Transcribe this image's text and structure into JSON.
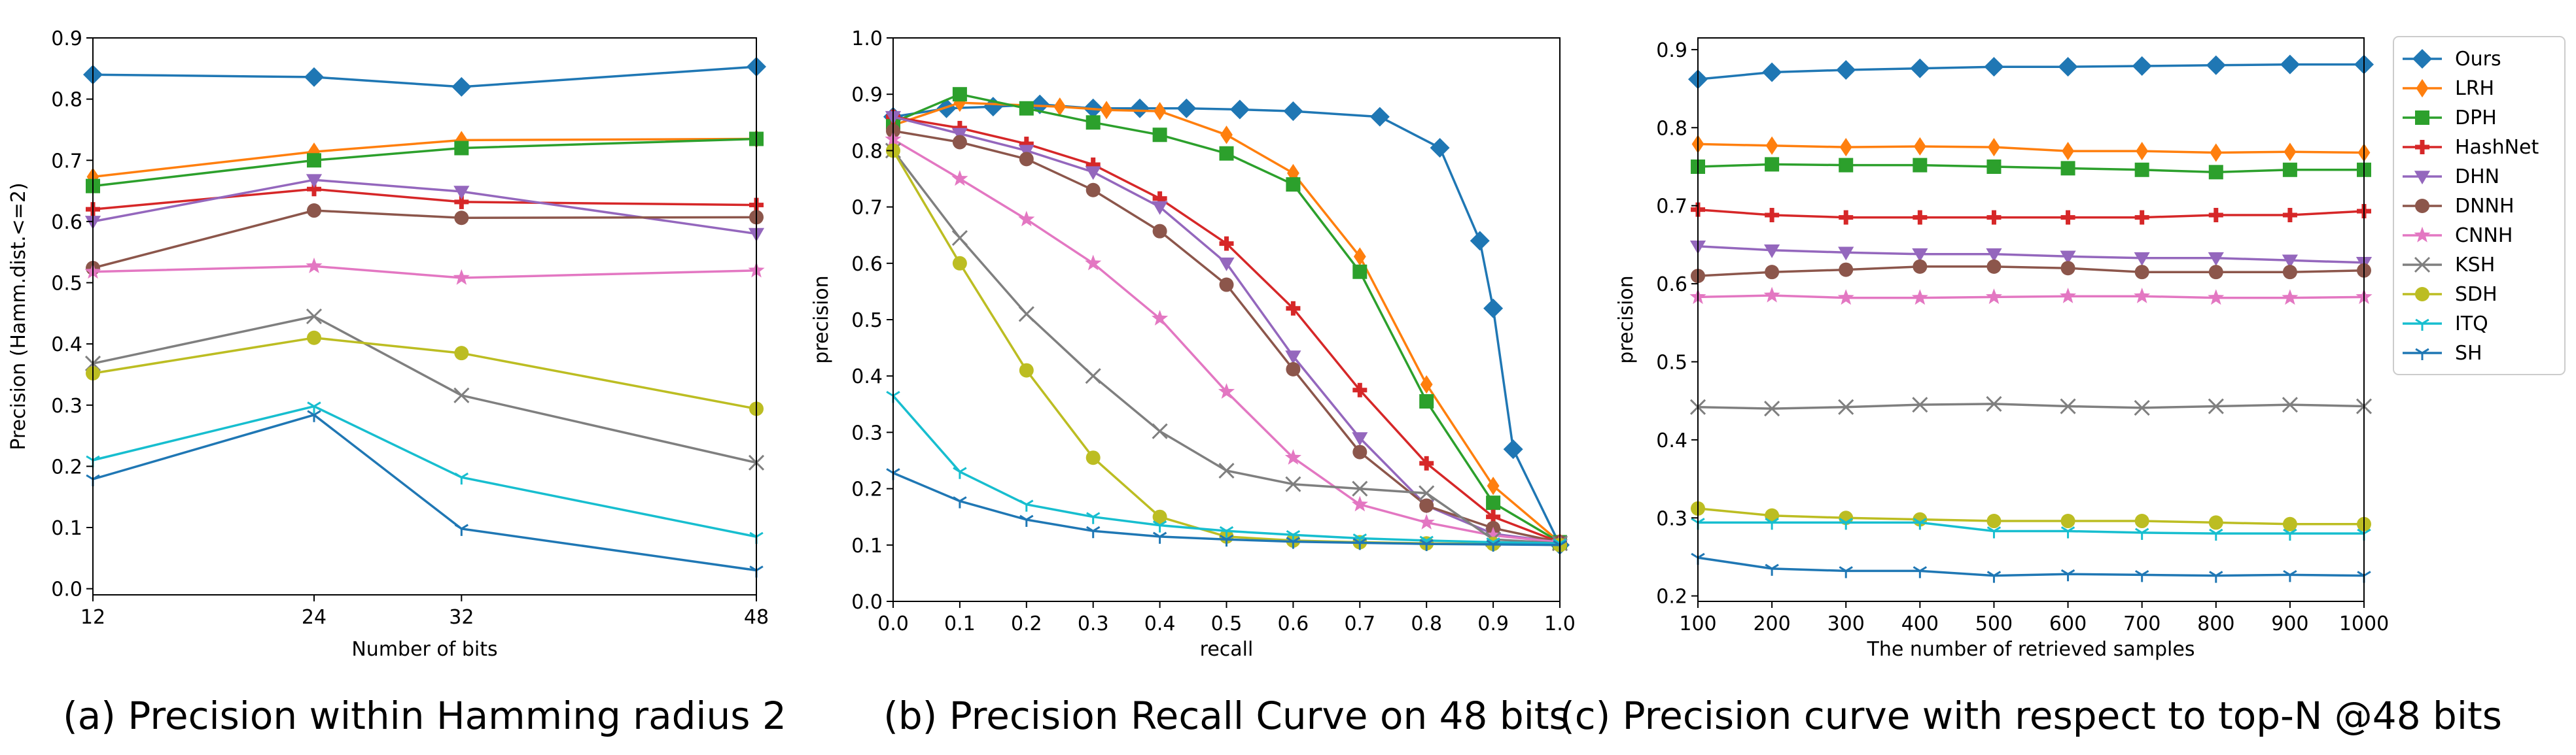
{
  "chart_data": [
    {
      "type": "line",
      "caption": "(a) Precision within Hamming radius 2",
      "xlabel": "Number of bits",
      "ylabel": "Precision (Hamm.dist.<=2)",
      "x": [
        12,
        24,
        32,
        48
      ],
      "xticks": [
        "12",
        "24",
        "32",
        "48"
      ],
      "xlim": [
        12,
        48
      ],
      "ylim": [
        -0.01,
        0.9
      ],
      "yticks": [
        0.0,
        0.1,
        0.2,
        0.3,
        0.4,
        0.5,
        0.6,
        0.7,
        0.8,
        0.9
      ],
      "ytick_labels": [
        "0.0",
        "0.1",
        "0.2",
        "0.3",
        "0.4",
        "0.5",
        "0.6",
        "0.7",
        "0.8",
        "0.9"
      ],
      "series": [
        {
          "name": "Ours",
          "values": [
            0.84,
            0.836,
            0.82,
            0.853
          ]
        },
        {
          "name": "LRH",
          "values": [
            0.673,
            0.714,
            0.733,
            0.735
          ]
        },
        {
          "name": "DPH",
          "values": [
            0.658,
            0.7,
            0.72,
            0.735
          ]
        },
        {
          "name": "HashNet",
          "values": [
            0.62,
            0.653,
            0.632,
            0.627
          ]
        },
        {
          "name": "DHN",
          "values": [
            0.6,
            0.668,
            0.649,
            0.58
          ]
        },
        {
          "name": "DNNH",
          "values": [
            0.524,
            0.618,
            0.606,
            0.607
          ]
        },
        {
          "name": "CNNH",
          "values": [
            0.518,
            0.527,
            0.508,
            0.52
          ]
        },
        {
          "name": "KSH",
          "values": [
            0.368,
            0.445,
            0.316,
            0.206
          ]
        },
        {
          "name": "SDH",
          "values": [
            0.352,
            0.41,
            0.385,
            0.294
          ]
        },
        {
          "name": "ITQ",
          "values": [
            0.21,
            0.298,
            0.182,
            0.085
          ]
        },
        {
          "name": "SH",
          "values": [
            0.179,
            0.284,
            0.098,
            0.03
          ]
        }
      ]
    },
    {
      "type": "line",
      "caption": "(b) Precision Recall Curve on 48 bits",
      "xlabel": "recall",
      "ylabel": "precision",
      "xlim": [
        0.0,
        1.0
      ],
      "ylim": [
        0.0,
        1.0
      ],
      "xticks": [
        0.0,
        0.1,
        0.2,
        0.3,
        0.4,
        0.5,
        0.6,
        0.7,
        0.8,
        0.9,
        1.0
      ],
      "xtick_labels": [
        "0.0",
        "0.1",
        "0.2",
        "0.3",
        "0.4",
        "0.5",
        "0.6",
        "0.7",
        "0.8",
        "0.9",
        "1.0"
      ],
      "yticks": [
        0.0,
        0.1,
        0.2,
        0.3,
        0.4,
        0.5,
        0.6,
        0.7,
        0.8,
        0.9,
        1.0
      ],
      "ytick_labels": [
        "0.0",
        "0.1",
        "0.2",
        "0.3",
        "0.4",
        "0.5",
        "0.6",
        "0.7",
        "0.8",
        "0.9",
        "1.0"
      ],
      "series": [
        {
          "name": "Ours",
          "points": [
            [
              0.0,
              0.86
            ],
            [
              0.08,
              0.875
            ],
            [
              0.15,
              0.878
            ],
            [
              0.22,
              0.882
            ],
            [
              0.3,
              0.875
            ],
            [
              0.37,
              0.875
            ],
            [
              0.44,
              0.875
            ],
            [
              0.52,
              0.873
            ],
            [
              0.6,
              0.87
            ],
            [
              0.73,
              0.86
            ],
            [
              0.82,
              0.805
            ],
            [
              0.88,
              0.64
            ],
            [
              0.9,
              0.52
            ],
            [
              0.93,
              0.27
            ],
            [
              1.0,
              0.1
            ]
          ]
        },
        {
          "name": "LRH",
          "points": [
            [
              0.0,
              0.845
            ],
            [
              0.1,
              0.885
            ],
            [
              0.25,
              0.878
            ],
            [
              0.32,
              0.872
            ],
            [
              0.4,
              0.87
            ],
            [
              0.5,
              0.828
            ],
            [
              0.6,
              0.76
            ],
            [
              0.7,
              0.612
            ],
            [
              0.8,
              0.385
            ],
            [
              0.9,
              0.205
            ],
            [
              1.0,
              0.105
            ]
          ]
        },
        {
          "name": "DPH",
          "points": [
            [
              0.0,
              0.85
            ],
            [
              0.1,
              0.9
            ],
            [
              0.2,
              0.875
            ],
            [
              0.3,
              0.85
            ],
            [
              0.4,
              0.828
            ],
            [
              0.5,
              0.795
            ],
            [
              0.6,
              0.74
            ],
            [
              0.7,
              0.585
            ],
            [
              0.8,
              0.355
            ],
            [
              0.9,
              0.175
            ],
            [
              1.0,
              0.105
            ]
          ]
        },
        {
          "name": "HashNet",
          "points": [
            [
              0.0,
              0.86
            ],
            [
              0.1,
              0.84
            ],
            [
              0.2,
              0.812
            ],
            [
              0.3,
              0.775
            ],
            [
              0.4,
              0.715
            ],
            [
              0.5,
              0.635
            ],
            [
              0.6,
              0.52
            ],
            [
              0.7,
              0.375
            ],
            [
              0.8,
              0.245
            ],
            [
              0.9,
              0.15
            ],
            [
              1.0,
              0.105
            ]
          ]
        },
        {
          "name": "DHN",
          "points": [
            [
              0.0,
              0.86
            ],
            [
              0.1,
              0.83
            ],
            [
              0.2,
              0.8
            ],
            [
              0.3,
              0.762
            ],
            [
              0.4,
              0.7
            ],
            [
              0.5,
              0.6
            ],
            [
              0.6,
              0.435
            ],
            [
              0.7,
              0.29
            ],
            [
              0.8,
              0.17
            ],
            [
              0.9,
              0.12
            ],
            [
              1.0,
              0.105
            ]
          ]
        },
        {
          "name": "DNNH",
          "points": [
            [
              0.0,
              0.835
            ],
            [
              0.1,
              0.815
            ],
            [
              0.2,
              0.785
            ],
            [
              0.3,
              0.73
            ],
            [
              0.4,
              0.657
            ],
            [
              0.5,
              0.562
            ],
            [
              0.6,
              0.412
            ],
            [
              0.7,
              0.265
            ],
            [
              0.8,
              0.17
            ],
            [
              0.9,
              0.13
            ],
            [
              1.0,
              0.105
            ]
          ]
        },
        {
          "name": "CNNH",
          "points": [
            [
              0.0,
              0.82
            ],
            [
              0.1,
              0.75
            ],
            [
              0.2,
              0.678
            ],
            [
              0.3,
              0.6
            ],
            [
              0.4,
              0.502
            ],
            [
              0.5,
              0.372
            ],
            [
              0.6,
              0.255
            ],
            [
              0.7,
              0.172
            ],
            [
              0.8,
              0.14
            ],
            [
              0.9,
              0.117
            ],
            [
              1.0,
              0.105
            ]
          ]
        },
        {
          "name": "KSH",
          "points": [
            [
              0.0,
              0.8
            ],
            [
              0.1,
              0.645
            ],
            [
              0.2,
              0.51
            ],
            [
              0.3,
              0.4
            ],
            [
              0.4,
              0.302
            ],
            [
              0.5,
              0.232
            ],
            [
              0.6,
              0.208
            ],
            [
              0.7,
              0.2
            ],
            [
              0.8,
              0.192
            ],
            [
              0.9,
              0.11
            ],
            [
              1.0,
              0.103
            ]
          ]
        },
        {
          "name": "SDH",
          "points": [
            [
              0.0,
              0.8
            ],
            [
              0.1,
              0.6
            ],
            [
              0.2,
              0.41
            ],
            [
              0.3,
              0.255
            ],
            [
              0.4,
              0.15
            ],
            [
              0.5,
              0.115
            ],
            [
              0.6,
              0.108
            ],
            [
              0.7,
              0.105
            ],
            [
              0.8,
              0.103
            ],
            [
              0.9,
              0.102
            ],
            [
              1.0,
              0.1
            ]
          ]
        },
        {
          "name": "ITQ",
          "points": [
            [
              0.0,
              0.365
            ],
            [
              0.1,
              0.23
            ],
            [
              0.2,
              0.172
            ],
            [
              0.3,
              0.15
            ],
            [
              0.4,
              0.135
            ],
            [
              0.5,
              0.125
            ],
            [
              0.6,
              0.118
            ],
            [
              0.7,
              0.112
            ],
            [
              0.8,
              0.108
            ],
            [
              0.9,
              0.105
            ],
            [
              1.0,
              0.103
            ]
          ]
        },
        {
          "name": "SH",
          "points": [
            [
              0.0,
              0.228
            ],
            [
              0.1,
              0.178
            ],
            [
              0.2,
              0.145
            ],
            [
              0.3,
              0.125
            ],
            [
              0.4,
              0.115
            ],
            [
              0.5,
              0.11
            ],
            [
              0.6,
              0.106
            ],
            [
              0.7,
              0.104
            ],
            [
              0.8,
              0.102
            ],
            [
              0.9,
              0.101
            ],
            [
              1.0,
              0.1
            ]
          ]
        }
      ]
    },
    {
      "type": "line",
      "caption": "(c) Precision curve with respect to top-N @48 bits",
      "xlabel": "The number of retrieved samples",
      "ylabel": "precision",
      "x": [
        100,
        200,
        300,
        400,
        500,
        600,
        700,
        800,
        900,
        1000
      ],
      "xticks": [
        "100",
        "200",
        "300",
        "400",
        "500",
        "600",
        "700",
        "800",
        "900",
        "1000"
      ],
      "xlim": [
        100,
        1000
      ],
      "ylim": [
        0.193,
        0.915
      ],
      "yticks": [
        0.2,
        0.3,
        0.4,
        0.5,
        0.6,
        0.7,
        0.8,
        0.9
      ],
      "ytick_labels": [
        "0.2",
        "0.3",
        "0.4",
        "0.5",
        "0.6",
        "0.7",
        "0.8",
        "0.9"
      ],
      "series": [
        {
          "name": "Ours",
          "values": [
            0.862,
            0.871,
            0.874,
            0.876,
            0.878,
            0.878,
            0.879,
            0.88,
            0.881,
            0.881
          ]
        },
        {
          "name": "LRH",
          "values": [
            0.779,
            0.777,
            0.775,
            0.776,
            0.775,
            0.77,
            0.77,
            0.768,
            0.769,
            0.768
          ]
        },
        {
          "name": "DPH",
          "values": [
            0.75,
            0.753,
            0.752,
            0.752,
            0.75,
            0.748,
            0.746,
            0.743,
            0.746,
            0.746
          ]
        },
        {
          "name": "HashNet",
          "values": [
            0.695,
            0.688,
            0.685,
            0.685,
            0.685,
            0.685,
            0.685,
            0.688,
            0.688,
            0.693
          ]
        },
        {
          "name": "DHN",
          "values": [
            0.648,
            0.643,
            0.64,
            0.638,
            0.638,
            0.635,
            0.633,
            0.633,
            0.63,
            0.627
          ]
        },
        {
          "name": "DNNH",
          "values": [
            0.61,
            0.615,
            0.618,
            0.622,
            0.622,
            0.62,
            0.615,
            0.615,
            0.615,
            0.617
          ]
        },
        {
          "name": "CNNH",
          "values": [
            0.583,
            0.585,
            0.582,
            0.582,
            0.583,
            0.584,
            0.584,
            0.582,
            0.582,
            0.583
          ]
        },
        {
          "name": "KSH",
          "values": [
            0.442,
            0.44,
            0.442,
            0.445,
            0.446,
            0.443,
            0.441,
            0.443,
            0.445,
            0.443
          ]
        },
        {
          "name": "SDH",
          "values": [
            0.312,
            0.303,
            0.3,
            0.298,
            0.296,
            0.296,
            0.296,
            0.294,
            0.292,
            0.292
          ]
        },
        {
          "name": "ITQ",
          "values": [
            0.294,
            0.294,
            0.294,
            0.294,
            0.283,
            0.283,
            0.281,
            0.28,
            0.28,
            0.28
          ]
        },
        {
          "name": "SH",
          "values": [
            0.249,
            0.235,
            0.232,
            0.232,
            0.226,
            0.228,
            0.227,
            0.226,
            0.227,
            0.226
          ]
        }
      ]
    }
  ],
  "legend": {
    "placement": "right",
    "entries": [
      {
        "name": "Ours",
        "color": "#1f77b4",
        "marker": "diamond"
      },
      {
        "name": "LRH",
        "color": "#ff7f0e",
        "marker": "thin-diamond"
      },
      {
        "name": "DPH",
        "color": "#2ca02c",
        "marker": "square"
      },
      {
        "name": "HashNet",
        "color": "#d62728",
        "marker": "plus"
      },
      {
        "name": "DHN",
        "color": "#9467bd",
        "marker": "triangle-down"
      },
      {
        "name": "DNNH",
        "color": "#8c564b",
        "marker": "circle"
      },
      {
        "name": "CNNH",
        "color": "#e377c2",
        "marker": "star"
      },
      {
        "name": "KSH",
        "color": "#7f7f7f",
        "marker": "x"
      },
      {
        "name": "SDH",
        "color": "#bcbd22",
        "marker": "circle"
      },
      {
        "name": "ITQ",
        "color": "#17becf",
        "marker": "tri-down"
      },
      {
        "name": "SH",
        "color": "#1f77b4",
        "marker": "tri-down"
      }
    ]
  }
}
